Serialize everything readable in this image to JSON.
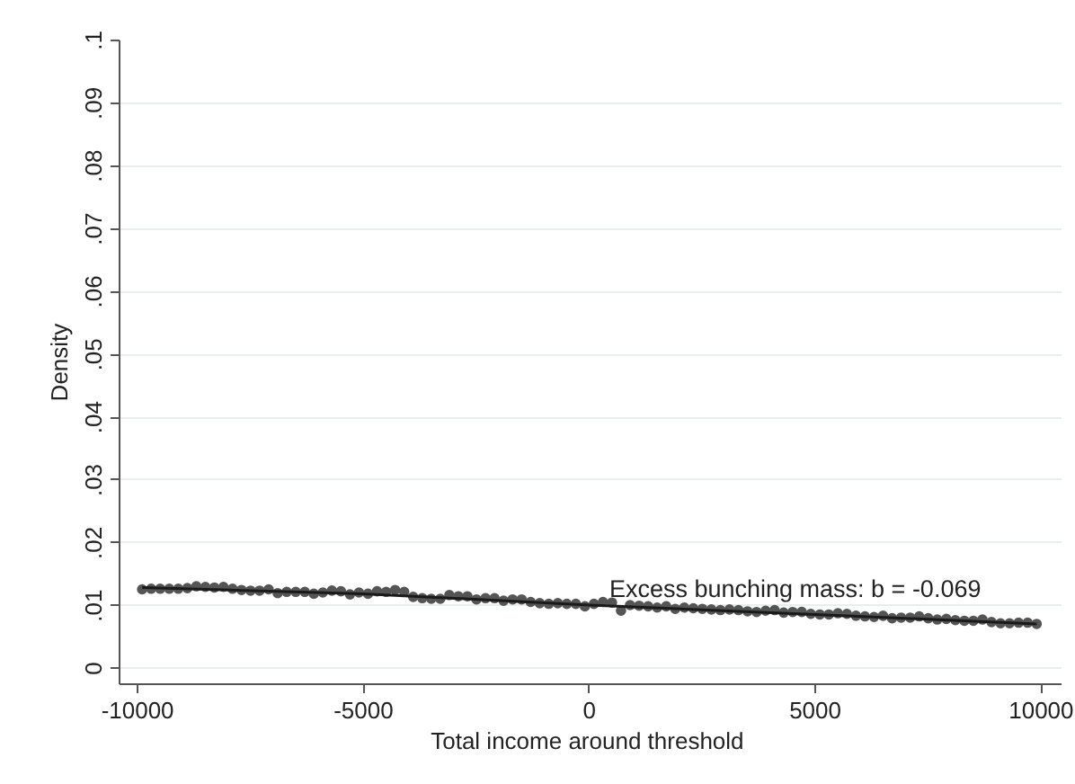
{
  "chart_data": {
    "type": "scatter",
    "xlabel": "Total income around  threshold",
    "ylabel": "Density",
    "annotations": [
      "Excess bunching mass: b = -0.069"
    ],
    "xlim": [
      -10400,
      10450
    ],
    "xticks": [
      -10000,
      -5000,
      0,
      5000,
      10000
    ],
    "ylim": [
      -0.0025,
      0.1
    ],
    "yticks": [
      0,
      {
        "value": 0.01,
        "label": ".01"
      },
      {
        "value": 0.02,
        "label": ".02"
      },
      {
        "value": 0.03,
        "label": ".03"
      },
      {
        "value": 0.04,
        "label": ".04"
      },
      {
        "value": 0.05,
        "label": ".05"
      },
      {
        "value": 0.06,
        "label": ".06"
      },
      {
        "value": 0.07,
        "label": ".07"
      },
      {
        "value": 0.08,
        "label": ".08"
      },
      {
        "value": 0.09,
        "label": ".09"
      },
      {
        "value": 0.1,
        "label": ".1"
      }
    ],
    "grid": "y",
    "series": [
      {
        "type": "scatter",
        "color": "#555555",
        "marker": "circle",
        "x": [
          -9900,
          -9700,
          -9500,
          -9300,
          -9100,
          -8900,
          -8700,
          -8500,
          -8300,
          -8100,
          -7900,
          -7700,
          -7500,
          -7300,
          -7100,
          -6900,
          -6700,
          -6500,
          -6300,
          -6100,
          -5900,
          -5700,
          -5500,
          -5300,
          -5100,
          -4900,
          -4700,
          -4500,
          -4300,
          -4100,
          -3900,
          -3700,
          -3500,
          -3300,
          -3100,
          -2900,
          -2700,
          -2500,
          -2300,
          -2100,
          -1900,
          -1700,
          -1500,
          -1300,
          -1100,
          -900,
          -700,
          -500,
          -300,
          -100,
          100,
          300,
          500,
          700,
          900,
          1100,
          1300,
          1500,
          1700,
          1900,
          2100,
          2300,
          2500,
          2700,
          2900,
          3100,
          3300,
          3500,
          3700,
          3900,
          4100,
          4300,
          4500,
          4700,
          4900,
          5100,
          5300,
          5500,
          5700,
          5900,
          6100,
          6300,
          6500,
          6700,
          6900,
          7100,
          7300,
          7500,
          7700,
          7900,
          8100,
          8300,
          8500,
          8700,
          8900,
          9100,
          9300,
          9500,
          9700,
          9900
        ],
        "values": [
          0.0126,
          0.0127,
          0.0127,
          0.0127,
          0.0127,
          0.0128,
          0.0131,
          0.013,
          0.0129,
          0.013,
          0.0127,
          0.0125,
          0.0124,
          0.0124,
          0.0126,
          0.012,
          0.0122,
          0.0122,
          0.0122,
          0.0119,
          0.0121,
          0.0124,
          0.0123,
          0.0118,
          0.0121,
          0.0119,
          0.0123,
          0.0122,
          0.0125,
          0.0122,
          0.0114,
          0.0112,
          0.0111,
          0.0111,
          0.0117,
          0.0115,
          0.0115,
          0.011,
          0.0112,
          0.0112,
          0.0108,
          0.011,
          0.011,
          0.0106,
          0.0104,
          0.0103,
          0.0104,
          0.0103,
          0.0103,
          0.0099,
          0.0103,
          0.0106,
          0.0105,
          0.0092,
          0.0101,
          0.01,
          0.0099,
          0.0097,
          0.0099,
          0.0095,
          0.0097,
          0.0096,
          0.0095,
          0.0094,
          0.0093,
          0.0094,
          0.0093,
          0.0091,
          0.009,
          0.0092,
          0.0093,
          0.0089,
          0.009,
          0.009,
          0.0087,
          0.0086,
          0.0086,
          0.0088,
          0.0087,
          0.0084,
          0.0083,
          0.0082,
          0.0084,
          0.008,
          0.0081,
          0.0081,
          0.0083,
          0.008,
          0.0078,
          0.0079,
          0.0077,
          0.0076,
          0.0076,
          0.0078,
          0.0074,
          0.0072,
          0.0072,
          0.0073,
          0.0073,
          0.0071
        ]
      },
      {
        "type": "line",
        "color": "#1a1a1a",
        "x": [
          -9900,
          -5000,
          0,
          5000,
          9900
        ],
        "values": [
          0.0129,
          0.0119,
          0.0101,
          0.0086,
          0.0071
        ]
      }
    ]
  }
}
